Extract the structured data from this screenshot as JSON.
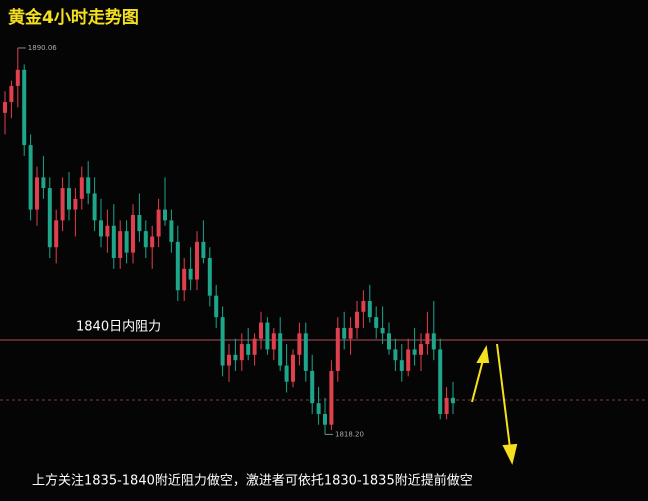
{
  "chart_data": {
    "type": "candlestick",
    "title": "黄金4小时走势图",
    "resistance_label": "1840日内阻力",
    "note": "上方关注1835-1840附近阻力做空，激进者可依托1830-1835附近提前做空",
    "up_color": "#e0404e",
    "down_color": "#1fa58a",
    "ylim": [
      1806,
      1893.4
    ],
    "annotations": [
      {
        "text": "1890.06",
        "value": 1890.06
      },
      {
        "text": "1818.20",
        "value": 1818.2
      }
    ],
    "ohlc": [
      [
        1878,
        1882,
        1874,
        1880
      ],
      [
        1880,
        1884,
        1877,
        1883
      ],
      [
        1883,
        1890.06,
        1879,
        1886
      ],
      [
        1886,
        1887,
        1870,
        1872
      ],
      [
        1872,
        1874,
        1858,
        1860
      ],
      [
        1860,
        1868,
        1857,
        1866
      ],
      [
        1866,
        1870,
        1862,
        1864
      ],
      [
        1864,
        1866,
        1851,
        1853
      ],
      [
        1853,
        1860,
        1850,
        1858
      ],
      [
        1858,
        1866,
        1856,
        1864
      ],
      [
        1864,
        1867,
        1858,
        1860
      ],
      [
        1860,
        1864,
        1855,
        1862
      ],
      [
        1862,
        1868,
        1860,
        1866
      ],
      [
        1866,
        1869,
        1861,
        1863
      ],
      [
        1863,
        1866,
        1856,
        1858
      ],
      [
        1858,
        1862,
        1853,
        1855
      ],
      [
        1855,
        1860,
        1852,
        1857
      ],
      [
        1857,
        1861,
        1849,
        1851
      ],
      [
        1851,
        1858,
        1849,
        1856
      ],
      [
        1856,
        1858,
        1850,
        1852
      ],
      [
        1852,
        1861,
        1850,
        1859
      ],
      [
        1859,
        1863,
        1854,
        1856
      ],
      [
        1856,
        1858,
        1851,
        1853
      ],
      [
        1853,
        1857,
        1849,
        1855
      ],
      [
        1855,
        1862,
        1853,
        1860
      ],
      [
        1860,
        1866,
        1857,
        1858
      ],
      [
        1858,
        1860,
        1852,
        1854
      ],
      [
        1854,
        1857,
        1843,
        1845
      ],
      [
        1845,
        1851,
        1843,
        1849
      ],
      [
        1849,
        1853,
        1845,
        1847
      ],
      [
        1847,
        1856,
        1845,
        1854
      ],
      [
        1854,
        1858,
        1850,
        1851
      ],
      [
        1851,
        1853,
        1842,
        1844
      ],
      [
        1844,
        1846,
        1838,
        1840
      ],
      [
        1840,
        1842,
        1829,
        1831
      ],
      [
        1831,
        1835,
        1828,
        1833
      ],
      [
        1833,
        1836,
        1830,
        1832
      ],
      [
        1832,
        1837,
        1830,
        1835
      ],
      [
        1835,
        1838,
        1832,
        1833
      ],
      [
        1833,
        1837,
        1831,
        1836
      ],
      [
        1836,
        1841,
        1834,
        1839
      ],
      [
        1839,
        1840,
        1833,
        1834
      ],
      [
        1834,
        1838,
        1832,
        1837
      ],
      [
        1837,
        1840,
        1830,
        1831
      ],
      [
        1831,
        1835,
        1826,
        1828
      ],
      [
        1828,
        1834,
        1827,
        1833
      ],
      [
        1833,
        1839,
        1831,
        1837
      ],
      [
        1837,
        1839,
        1828,
        1830
      ],
      [
        1830,
        1833,
        1822,
        1824
      ],
      [
        1824,
        1827,
        1820,
        1822
      ],
      [
        1822,
        1825,
        1818.2,
        1820
      ],
      [
        1820,
        1832,
        1819,
        1830
      ],
      [
        1830,
        1840,
        1828,
        1838
      ],
      [
        1838,
        1841,
        1834,
        1836
      ],
      [
        1836,
        1840,
        1833,
        1838
      ],
      [
        1838,
        1843,
        1836,
        1841
      ],
      [
        1841,
        1845,
        1838,
        1843
      ],
      [
        1843,
        1846,
        1839,
        1840
      ],
      [
        1840,
        1842,
        1836,
        1838
      ],
      [
        1838,
        1842,
        1835,
        1837
      ],
      [
        1837,
        1839,
        1833,
        1834
      ],
      [
        1834,
        1836,
        1830,
        1832
      ],
      [
        1832,
        1835,
        1828,
        1830
      ],
      [
        1830,
        1836,
        1829,
        1834
      ],
      [
        1834,
        1838,
        1831,
        1833
      ],
      [
        1833,
        1837,
        1830,
        1835
      ],
      [
        1835,
        1841,
        1833,
        1837
      ],
      [
        1837,
        1843,
        1832,
        1834
      ],
      [
        1834,
        1836,
        1821,
        1822
      ],
      [
        1822,
        1827,
        1821,
        1825
      ],
      [
        1825,
        1828,
        1822,
        1824
      ]
    ]
  }
}
